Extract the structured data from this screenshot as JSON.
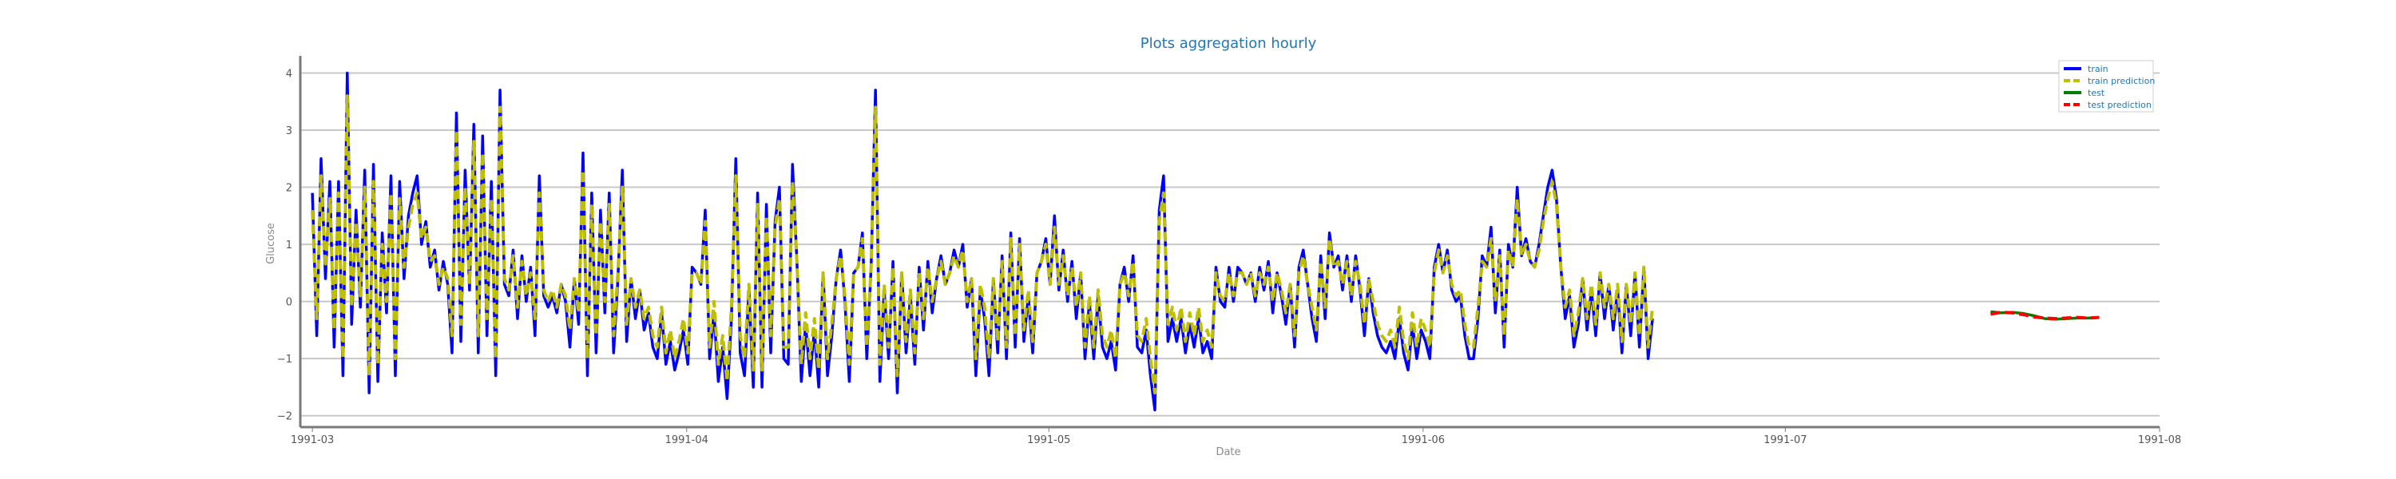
{
  "chart_data": {
    "type": "line",
    "title": "Plots aggregation hourly",
    "xlabel": "Date",
    "ylabel": "Glucose",
    "ylim": [
      -2.2,
      4.3
    ],
    "xlim": [
      "1991-02-28",
      "1991-08-01"
    ],
    "x_ticks": [
      "1991-03",
      "1991-04",
      "1991-05",
      "1991-06",
      "1991-07",
      "1991-08"
    ],
    "y_ticks": [
      -2,
      -1,
      0,
      1,
      2,
      3,
      4
    ],
    "y_tick_labels": [
      "−2",
      "−1",
      "0",
      "1",
      "2",
      "3",
      "4"
    ],
    "grid": "horizontal",
    "legend_position": "top-right",
    "colors": {
      "train": "#0000ff",
      "train_prediction": "#bfbf00",
      "test": "#008000",
      "test_prediction": "#ff0000",
      "title": "#1f77b4"
    },
    "series": [
      {
        "name": "train",
        "style": "solid",
        "x_start": "1991-03-01",
        "x_end": "1991-06-20",
        "values": [
          1.9,
          -0.6,
          2.5,
          0.4,
          2.1,
          -0.8,
          2.1,
          -1.3,
          4.0,
          -0.4,
          1.6,
          -0.1,
          2.3,
          -1.6,
          2.4,
          -1.4,
          1.2,
          -0.2,
          2.2,
          -1.3,
          2.1,
          0.4,
          1.5,
          1.9,
          2.2,
          1.0,
          1.4,
          0.6,
          0.9,
          0.2,
          0.7,
          0.3,
          -0.9,
          3.3,
          -0.7,
          2.3,
          0.2,
          3.1,
          -0.9,
          2.9,
          -0.6,
          2.1,
          -1.3,
          3.7,
          0.3,
          0.1,
          0.9,
          -0.3,
          0.8,
          0.0,
          0.6,
          -0.6,
          2.2,
          0.1,
          -0.1,
          0.1,
          -0.2,
          0.3,
          0.0,
          -0.8,
          0.4,
          -0.4,
          2.6,
          -1.3,
          1.9,
          -0.9,
          1.6,
          -0.2,
          1.9,
          -0.9,
          0.4,
          2.3,
          -0.7,
          0.4,
          -0.3,
          0.2,
          -0.5,
          -0.2,
          -0.8,
          -1.0,
          -0.2,
          -1.1,
          -0.7,
          -1.2,
          -0.9,
          -0.5,
          -1.1,
          0.6,
          0.5,
          0.3,
          1.6,
          -1.0,
          -0.2,
          -1.4,
          -0.8,
          -1.7,
          -0.3,
          2.5,
          -0.9,
          -1.3,
          0.2,
          -1.5,
          1.9,
          -1.5,
          1.7,
          -0.9,
          1.4,
          2.0,
          -1.0,
          -1.1,
          2.4,
          0.7,
          -1.4,
          -0.4,
          -1.3,
          -0.5,
          -1.5,
          0.5,
          -1.3,
          -0.6,
          0.4,
          0.9,
          0.0,
          -1.4,
          0.5,
          0.6,
          1.2,
          -1.0,
          0.6,
          3.7,
          -1.4,
          0.2,
          -1.0,
          0.7,
          -1.6,
          0.5,
          -0.9,
          0.1,
          -1.1,
          0.6,
          -0.5,
          0.7,
          -0.2,
          0.4,
          0.8,
          0.3,
          0.5,
          0.9,
          0.6,
          1.0,
          -0.1,
          0.4,
          -1.3,
          0.2,
          -0.3,
          -1.3,
          0.4,
          -0.9,
          0.8,
          -1.0,
          1.2,
          -0.8,
          1.1,
          -0.7,
          0.1,
          -0.9,
          0.5,
          0.7,
          1.1,
          0.3,
          1.5,
          0.2,
          0.9,
          0.0,
          0.7,
          -0.3,
          0.5,
          -1.0,
          0.0,
          -1.0,
          0.1,
          -0.8,
          -1.0,
          -0.7,
          -1.2,
          0.3,
          0.6,
          0.0,
          0.8,
          -0.8,
          -0.9,
          -0.5,
          -1.3,
          -1.9,
          1.6,
          2.2,
          -0.7,
          -0.3,
          -0.7,
          -0.3,
          -0.9,
          -0.4,
          -0.8,
          -0.3,
          -0.9,
          -0.7,
          -1.0,
          0.6,
          0.0,
          -0.1,
          0.6,
          0.0,
          0.6,
          0.5,
          0.3,
          0.5,
          0.0,
          0.6,
          0.2,
          0.7,
          -0.2,
          0.5,
          0.1,
          -0.4,
          0.3,
          -0.8,
          0.6,
          0.9,
          0.3,
          -0.3,
          -0.7,
          0.8,
          -0.3,
          1.2,
          0.6,
          0.8,
          0.2,
          0.8,
          0.0,
          0.8,
          0.2,
          -0.6,
          0.4,
          -0.2,
          -0.6,
          -0.8,
          -0.9,
          -0.7,
          -1.0,
          -0.3,
          -0.9,
          -1.2,
          -0.4,
          -1.0,
          -0.5,
          -0.7,
          -1.0,
          0.6,
          1.0,
          0.5,
          0.9,
          0.2,
          0.0,
          0.1,
          -0.6,
          -1.0,
          -1.0,
          -0.3,
          0.8,
          0.6,
          1.3,
          -0.2,
          0.9,
          -0.8,
          1.0,
          0.6,
          2.0,
          0.8,
          1.1,
          0.7,
          0.6,
          1.0,
          1.5,
          2.0,
          2.3,
          1.8,
          0.6,
          -0.3,
          0.1,
          -0.8,
          -0.4,
          0.4,
          -0.5,
          0.2,
          -0.6,
          0.5,
          -0.3,
          0.3,
          -0.5,
          0.2,
          -0.9,
          0.3,
          -0.6,
          0.5,
          -0.8,
          0.6,
          -1.0,
          -0.3
        ]
      },
      {
        "name": "train prediction",
        "style": "dashed",
        "x_start": "1991-03-01",
        "x_end": "1991-06-20",
        "values": [
          1.6,
          -0.3,
          2.2,
          0.6,
          1.8,
          -0.5,
          1.9,
          -1.0,
          3.6,
          -0.1,
          1.4,
          0.1,
          2.0,
          -1.3,
          2.1,
          -1.1,
          1.0,
          0.0,
          1.9,
          -1.0,
          1.8,
          0.6,
          1.3,
          1.7,
          1.9,
          1.1,
          1.3,
          0.7,
          0.8,
          0.3,
          0.6,
          0.4,
          -0.6,
          3.0,
          -0.4,
          2.0,
          0.3,
          2.8,
          -0.6,
          2.6,
          -0.3,
          1.8,
          -1.0,
          3.4,
          0.4,
          0.2,
          0.8,
          -0.1,
          0.7,
          0.1,
          0.5,
          -0.3,
          1.9,
          0.2,
          0.0,
          0.2,
          -0.1,
          0.3,
          0.1,
          -0.5,
          0.4,
          -0.2,
          2.3,
          -1.0,
          1.7,
          -0.6,
          1.4,
          0.0,
          1.7,
          -0.6,
          0.5,
          2.0,
          -0.4,
          0.4,
          -0.1,
          0.2,
          -0.3,
          -0.1,
          -0.6,
          -0.8,
          -0.1,
          -0.9,
          -0.5,
          -1.0,
          -0.7,
          -0.3,
          -0.9,
          0.5,
          0.5,
          0.3,
          1.4,
          -0.8,
          0.0,
          -1.1,
          -0.6,
          -1.4,
          -0.1,
          2.2,
          -0.6,
          -1.0,
          0.3,
          -1.2,
          1.7,
          -1.2,
          1.5,
          -0.6,
          1.3,
          1.8,
          -0.8,
          -0.8,
          2.1,
          0.7,
          -1.1,
          -0.2,
          -1.0,
          -0.3,
          -1.2,
          0.5,
          -1.0,
          -0.4,
          0.4,
          0.8,
          0.1,
          -1.1,
          0.5,
          0.6,
          1.1,
          -0.8,
          0.6,
          3.4,
          -1.1,
          0.3,
          -0.8,
          0.6,
          -1.3,
          0.5,
          -0.7,
          0.2,
          -0.9,
          0.5,
          -0.3,
          0.6,
          0.0,
          0.4,
          0.7,
          0.3,
          0.5,
          0.8,
          0.6,
          0.9,
          0.0,
          0.4,
          -1.0,
          0.3,
          -0.1,
          -1.0,
          0.4,
          -0.7,
          0.7,
          -0.8,
          1.1,
          -0.6,
          1.0,
          -0.5,
          0.2,
          -0.7,
          0.5,
          0.7,
          1.0,
          0.3,
          1.3,
          0.3,
          0.8,
          0.1,
          0.6,
          -0.1,
          0.5,
          -0.8,
          0.1,
          -0.8,
          0.2,
          -0.6,
          -0.8,
          -0.5,
          -1.0,
          0.3,
          0.5,
          0.1,
          0.7,
          -0.6,
          -0.7,
          -0.3,
          -1.0,
          -1.6,
          1.4,
          1.9,
          -0.4,
          -0.1,
          -0.5,
          -0.1,
          -0.7,
          -0.2,
          -0.6,
          -0.1,
          -0.7,
          -0.5,
          -0.8,
          0.5,
          0.1,
          0.0,
          0.5,
          0.1,
          0.5,
          0.5,
          0.3,
          0.5,
          0.1,
          0.5,
          0.3,
          0.6,
          0.0,
          0.5,
          0.2,
          -0.2,
          0.3,
          -0.6,
          0.5,
          0.8,
          0.3,
          -0.1,
          -0.5,
          0.7,
          -0.1,
          1.1,
          0.6,
          0.7,
          0.3,
          0.7,
          0.1,
          0.7,
          0.3,
          -0.4,
          0.4,
          0.0,
          -0.4,
          -0.6,
          -0.7,
          -0.5,
          -0.8,
          -0.1,
          -0.7,
          -1.0,
          -0.2,
          -0.8,
          -0.3,
          -0.5,
          -0.8,
          0.5,
          0.9,
          0.5,
          0.8,
          0.3,
          0.1,
          0.2,
          -0.4,
          -0.8,
          -0.8,
          -0.1,
          0.7,
          0.6,
          1.1,
          0.0,
          0.8,
          -0.6,
          0.9,
          0.6,
          1.8,
          0.8,
          1.0,
          0.7,
          0.6,
          0.9,
          1.4,
          1.8,
          2.1,
          1.7,
          0.6,
          -0.1,
          0.2,
          -0.6,
          -0.2,
          0.4,
          -0.3,
          0.3,
          -0.4,
          0.5,
          -0.1,
          0.3,
          -0.3,
          0.3,
          -0.7,
          0.3,
          -0.4,
          0.5,
          -0.6,
          0.6,
          -0.8,
          -0.1
        ]
      },
      {
        "name": "test",
        "style": "solid",
        "x_start": "1991-07-18",
        "x_end": "1991-07-27",
        "values": [
          -0.18,
          -0.2,
          -0.19,
          -0.21,
          -0.25,
          -0.3,
          -0.31,
          -0.3,
          -0.29,
          -0.29,
          -0.28
        ]
      },
      {
        "name": "test prediction",
        "style": "dashed",
        "x_start": "1991-07-18",
        "x_end": "1991-07-27",
        "values": [
          -0.22,
          -0.19,
          -0.2,
          -0.23,
          -0.27,
          -0.29,
          -0.3,
          -0.29,
          -0.28,
          -0.29,
          -0.28
        ]
      }
    ]
  }
}
